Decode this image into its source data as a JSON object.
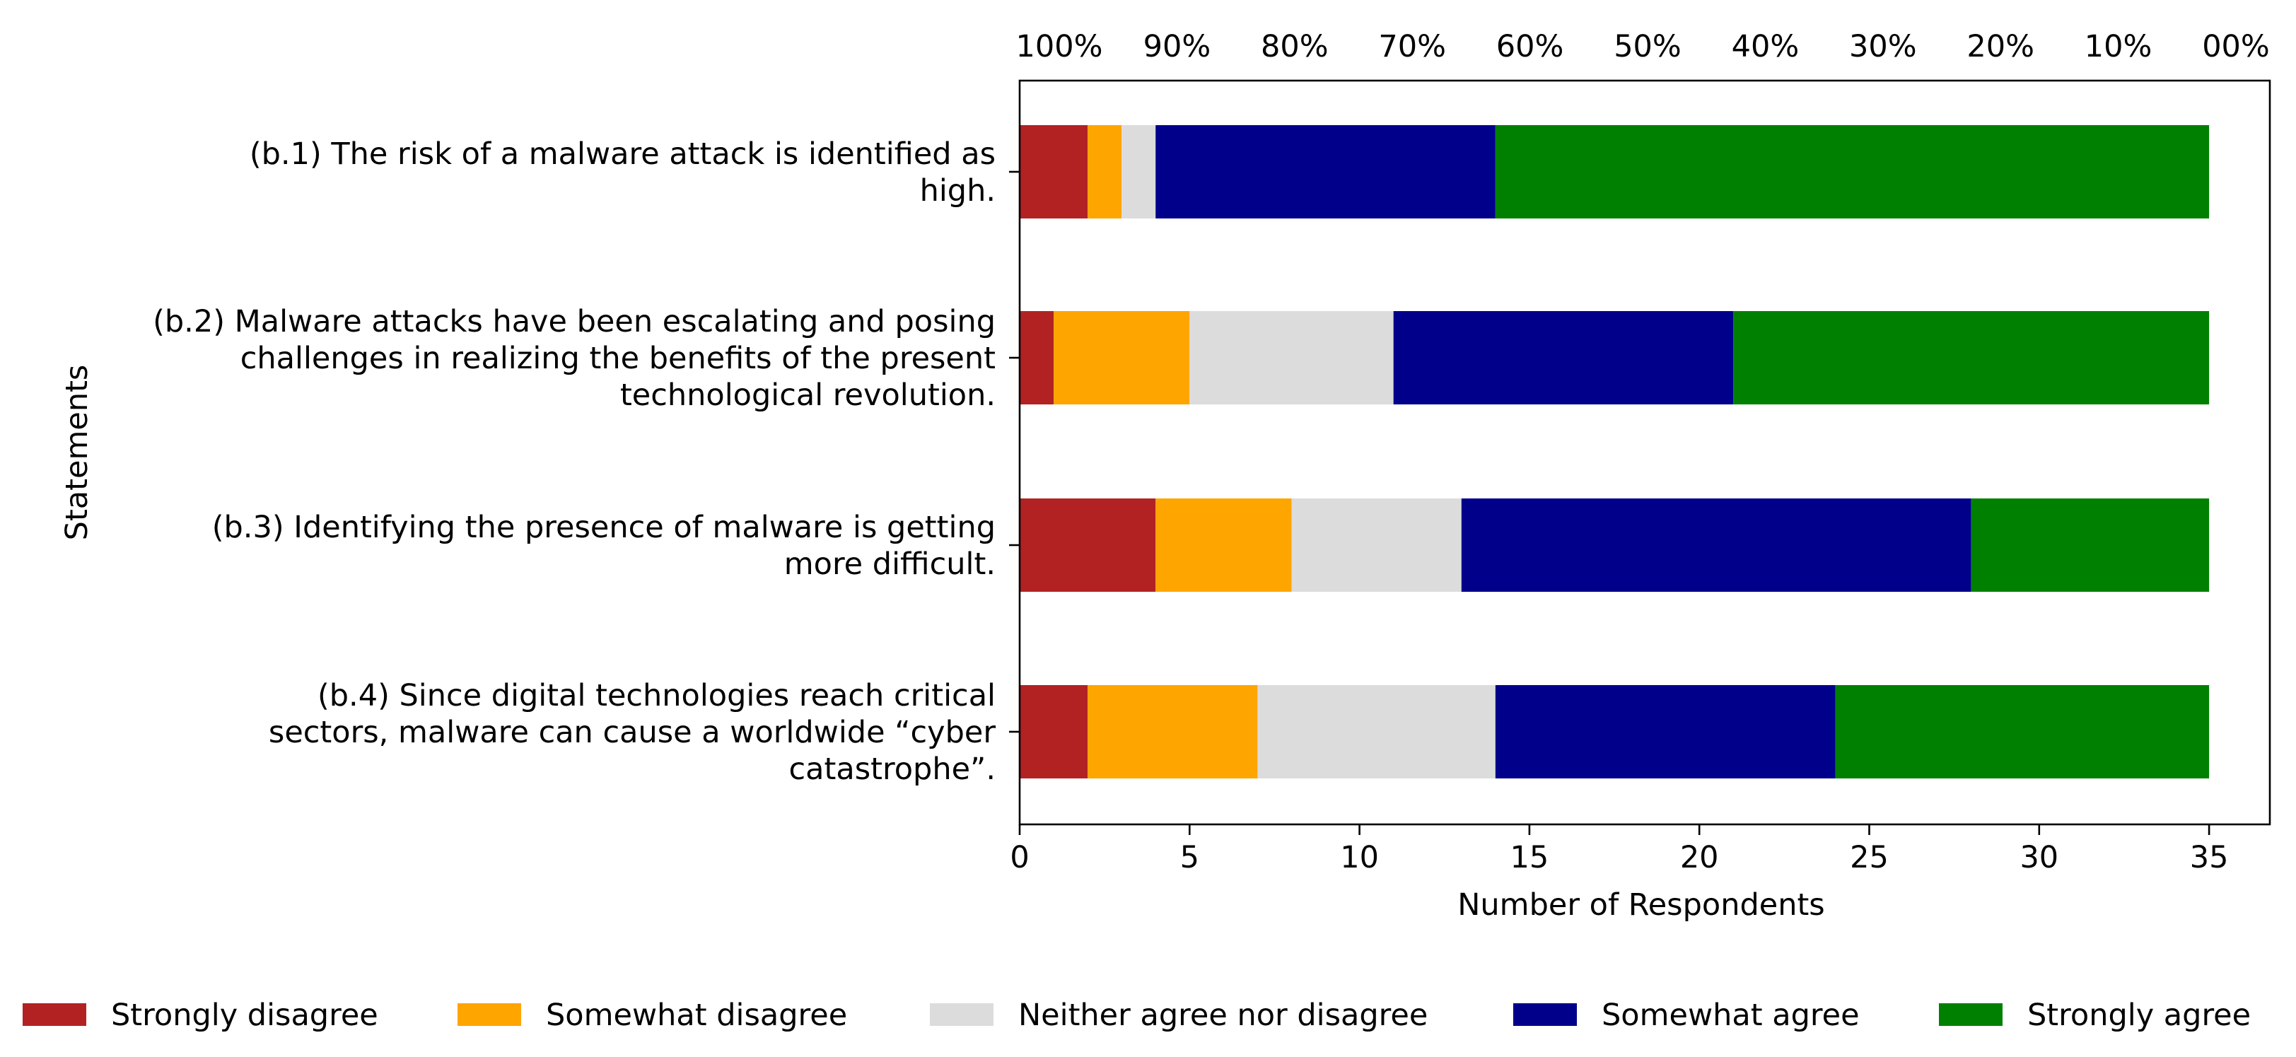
{
  "chart_data": {
    "type": "bar",
    "orientation": "horizontal",
    "stacked": true,
    "title": "",
    "xlabel": "Number of Respondents",
    "ylabel": "Statements",
    "xlim": [
      0,
      36
    ],
    "x_ticks": [
      0,
      5,
      10,
      15,
      20,
      25,
      30,
      35
    ],
    "top_axis": {
      "tick_labels": [
        "100%",
        "90%",
        "80%",
        "70%",
        "60%",
        "50%",
        "40%",
        "30%",
        "20%",
        "10%",
        "00%"
      ]
    },
    "categories": [
      [
        "(b.1) The risk of a malware attack is identified as",
        "high."
      ],
      [
        "(b.2) Malware attacks have been escalating and posing",
        "challenges in realizing the benefits of the present",
        "technological revolution."
      ],
      [
        "(b.3) Identifying the presence of malware is getting",
        "more difficult."
      ],
      [
        "(b.4) Since digital technologies reach critical",
        "sectors, malware can cause a worldwide “cyber",
        "catastrophe”."
      ]
    ],
    "series": [
      {
        "name": "Strongly disagree",
        "color": "#b22222",
        "values": [
          2,
          1,
          4,
          2
        ]
      },
      {
        "name": "Somewhat disagree",
        "color": "#ffa500",
        "values": [
          1,
          4,
          4,
          5
        ]
      },
      {
        "name": "Neither agree nor disagree",
        "color": "#dcdcdc",
        "values": [
          1,
          6,
          5,
          7
        ]
      },
      {
        "name": "Somewhat agree",
        "color": "#00008b",
        "values": [
          10,
          10,
          15,
          10
        ]
      },
      {
        "name": "Strongly agree",
        "color": "#008000",
        "values": [
          21,
          14,
          7,
          11
        ]
      }
    ],
    "legend_position": "bottom"
  }
}
